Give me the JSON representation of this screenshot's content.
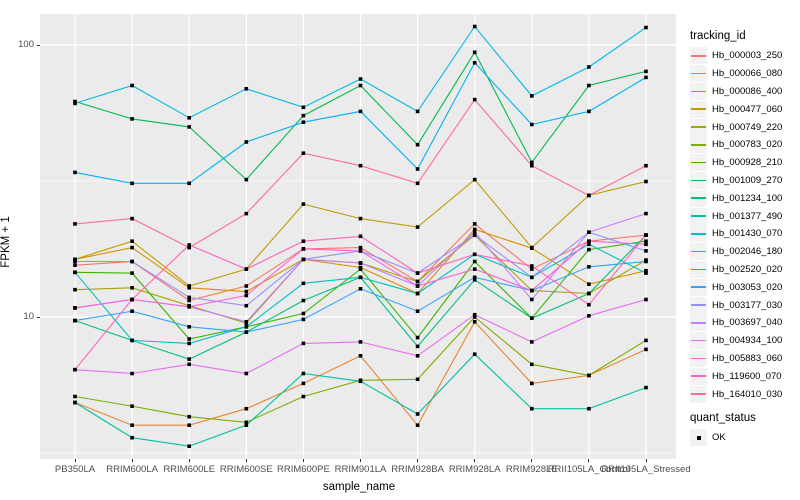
{
  "figure": {
    "x_axis_title": "sample_name",
    "y_axis_title": "FPKM + 1"
  },
  "legend": {
    "tracking_title": "tracking_id",
    "quant_title": "quant_status",
    "quant_ok_label": "OK"
  },
  "chart_data": {
    "type": "line",
    "title": "",
    "xlabel": "sample_name",
    "ylabel": "FPKM + 1",
    "y_scale": "log10",
    "ylim": [
      3,
      130
    ],
    "yticks": [
      10,
      100
    ],
    "ytick_labels": [
      "10",
      "100"
    ],
    "minor_gridlines": [
      3.162,
      31.62
    ],
    "grid": "on",
    "legend_position": "right",
    "panel_background": "#EBEBEB",
    "gridline_color": "#FFFFFF",
    "point_color": "#000000",
    "point_shape": "square",
    "quant_status": {
      "label": "OK",
      "marker": "black-square"
    },
    "categories": [
      "PB350LA",
      "RRIM600LA",
      "RRIM600LE",
      "RRIM600SE",
      "RRIM600PE",
      "RRIM901LA",
      "RRIM928BA",
      "RRIM928LA",
      "RRIM928LE",
      "RRII105LA_Control",
      "RRII105LA_Stressed"
    ],
    "series": [
      {
        "name": "Hb_000003_250",
        "color": "#F8766D",
        "values": [
          15.5,
          16,
          11.5,
          13,
          17.8,
          18,
          13.5,
          22,
          15,
          19,
          20
        ]
      },
      {
        "name": "Hb_000066_080",
        "color": "#EA8331",
        "values": [
          4.85,
          4.0,
          4.0,
          4.6,
          5.7,
          7.2,
          4.0,
          9.6,
          5.7,
          6.1,
          7.6
        ]
      },
      {
        "name": "Hb_000086_400",
        "color": "#D89000",
        "values": [
          16.3,
          18,
          12.8,
          12.4,
          16.3,
          15.2,
          12.2,
          21,
          17.9,
          13.2,
          14.8
        ]
      },
      {
        "name": "Hb_000477_060",
        "color": "#C09B00",
        "values": [
          16.3,
          19,
          13,
          15,
          26,
          23,
          21.4,
          32,
          18,
          28,
          31.5
        ]
      },
      {
        "name": "Hb_000749_220",
        "color": "#A3A500",
        "values": [
          12.6,
          12.8,
          11,
          9.5,
          16.3,
          15.8,
          13.5,
          20,
          12.5,
          12.2,
          16.2
        ]
      },
      {
        "name": "Hb_000783_020",
        "color": "#7CAE00",
        "values": [
          5.1,
          4.7,
          4.3,
          4.1,
          5.1,
          5.85,
          5.9,
          10,
          6.7,
          6.1,
          8.2
        ]
      },
      {
        "name": "Hb_000928_210",
        "color": "#39B600",
        "values": [
          14.6,
          14.5,
          8.3,
          9.2,
          10.3,
          15,
          8.4,
          16,
          9.9,
          17.7,
          19
        ]
      },
      {
        "name": "Hb_001009_270",
        "color": "#00BB4E",
        "values": [
          62,
          53.5,
          50,
          32,
          55,
          71,
          43,
          94,
          37,
          71,
          80
        ]
      },
      {
        "name": "Hb_001234_100",
        "color": "#00BF7D",
        "values": [
          9.7,
          8.2,
          7.0,
          8.8,
          11.5,
          14,
          7.8,
          13.7,
          9.9,
          12.2,
          20
        ]
      },
      {
        "name": "Hb_001377_490",
        "color": "#00C1A3",
        "values": [
          4.85,
          3.6,
          3.35,
          4.0,
          6.2,
          5.8,
          4.4,
          7.3,
          4.6,
          4.6,
          5.5
        ]
      },
      {
        "name": "Hb_001430_070",
        "color": "#00BFC4",
        "values": [
          14.6,
          8.2,
          8.0,
          9.2,
          13.3,
          14,
          12.2,
          17,
          14,
          18.5,
          14.5
        ]
      },
      {
        "name": "Hb_002046_180",
        "color": "#00BAE0",
        "values": [
          61,
          71,
          54,
          69,
          59,
          75,
          57,
          117,
          65,
          83,
          116
        ]
      },
      {
        "name": "Hb_002520_020",
        "color": "#00B0F6",
        "values": [
          34,
          31,
          31,
          44,
          52,
          57,
          35,
          86,
          51,
          57,
          76
        ]
      },
      {
        "name": "Hb_003053_020",
        "color": "#35A2FF",
        "values": [
          9.7,
          10.5,
          9.2,
          8.8,
          9.8,
          12.7,
          10.5,
          14,
          12.5,
          15.3,
          16
        ]
      },
      {
        "name": "Hb_003177_030",
        "color": "#9590FF",
        "values": [
          16,
          16,
          11.8,
          11,
          16.3,
          17.5,
          14.5,
          20,
          14,
          20.5,
          17.5
        ]
      },
      {
        "name": "Hb_003697_040",
        "color": "#C77CFF",
        "values": [
          10.8,
          11.6,
          10.9,
          9.6,
          16.3,
          15.8,
          13,
          20.5,
          11.6,
          20.5,
          24
        ]
      },
      {
        "name": "Hb_004934_100",
        "color": "#E76BF3",
        "values": [
          6.4,
          6.2,
          6.7,
          6.2,
          8.0,
          8.1,
          7.2,
          10.2,
          8.1,
          10.1,
          11.6
        ]
      },
      {
        "name": "Hb_005883_060",
        "color": "#FA62DB",
        "values": [
          10.8,
          11.6,
          10.9,
          12,
          17.8,
          17.5,
          13,
          15,
          12.5,
          19,
          18.5
        ]
      },
      {
        "name": "Hb_119600_070",
        "color": "#FF62BC",
        "values": [
          6.4,
          11.6,
          18.4,
          15,
          19,
          19.8,
          14.5,
          17,
          15.4,
          11.1,
          20
        ]
      },
      {
        "name": "Hb_164010_030",
        "color": "#FF6A98",
        "values": [
          22,
          23,
          18,
          24,
          40,
          36,
          31,
          63,
          36,
          28,
          36
        ]
      }
    ]
  }
}
